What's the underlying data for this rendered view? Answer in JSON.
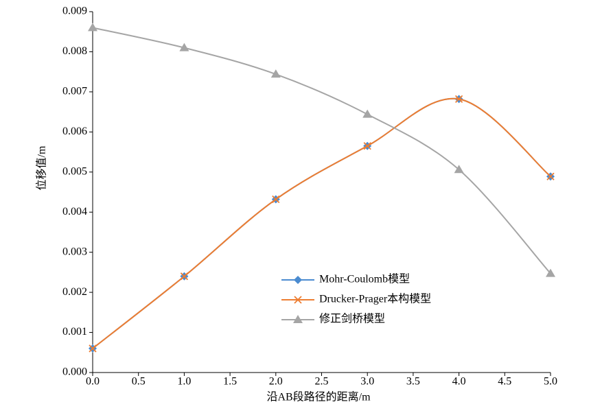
{
  "chart_data": {
    "type": "line",
    "smooth": true,
    "x_label": "沿AB段路径的距离/m",
    "y_label": "位移值/m",
    "x": [
      0,
      1,
      2,
      3,
      4,
      5
    ],
    "series": [
      {
        "name": "Mohr-Coulomb模型",
        "color": "#4a8bd0",
        "marker": "diamond",
        "values": [
          0.0006,
          0.0024,
          0.00432,
          0.00565,
          0.00682,
          0.00489
        ]
      },
      {
        "name": "Drucker-Prager本构模型",
        "color": "#ed7d31",
        "marker": "x",
        "values": [
          0.0006,
          0.0024,
          0.00432,
          0.00565,
          0.00682,
          0.00489
        ]
      },
      {
        "name": "修正剑桥模型",
        "color": "#a5a5a5",
        "marker": "triangle",
        "values": [
          0.0086,
          0.0081,
          0.00744,
          0.00644,
          0.00506,
          0.00247
        ]
      }
    ],
    "xlim": [
      0,
      5
    ],
    "xticks": [
      {
        "value": 0,
        "label": "0.0"
      },
      0.5,
      {
        "value": 1,
        "label": "1.0"
      },
      1.5,
      {
        "value": 2,
        "label": "2.0"
      },
      2.5,
      {
        "value": 3,
        "label": "3.0"
      },
      3.5,
      {
        "value": 4,
        "label": "4.0"
      },
      4.5,
      {
        "value": 5,
        "label": "5.0"
      }
    ],
    "ylim": [
      0,
      0.009
    ],
    "yticks": [
      {
        "value": 0,
        "label": "0.000"
      },
      {
        "value": 0.001,
        "label": "0.001"
      },
      {
        "value": 0.002,
        "label": "0.002"
      },
      {
        "value": 0.003,
        "label": "0.003"
      },
      {
        "value": 0.004,
        "label": "0.004"
      },
      {
        "value": 0.005,
        "label": "0.005"
      },
      {
        "value": 0.006,
        "label": "0.006"
      },
      {
        "value": 0.007,
        "label": "0.007"
      },
      {
        "value": 0.008,
        "label": "0.008"
      },
      {
        "value": 0.009,
        "label": "0.009"
      }
    ]
  }
}
